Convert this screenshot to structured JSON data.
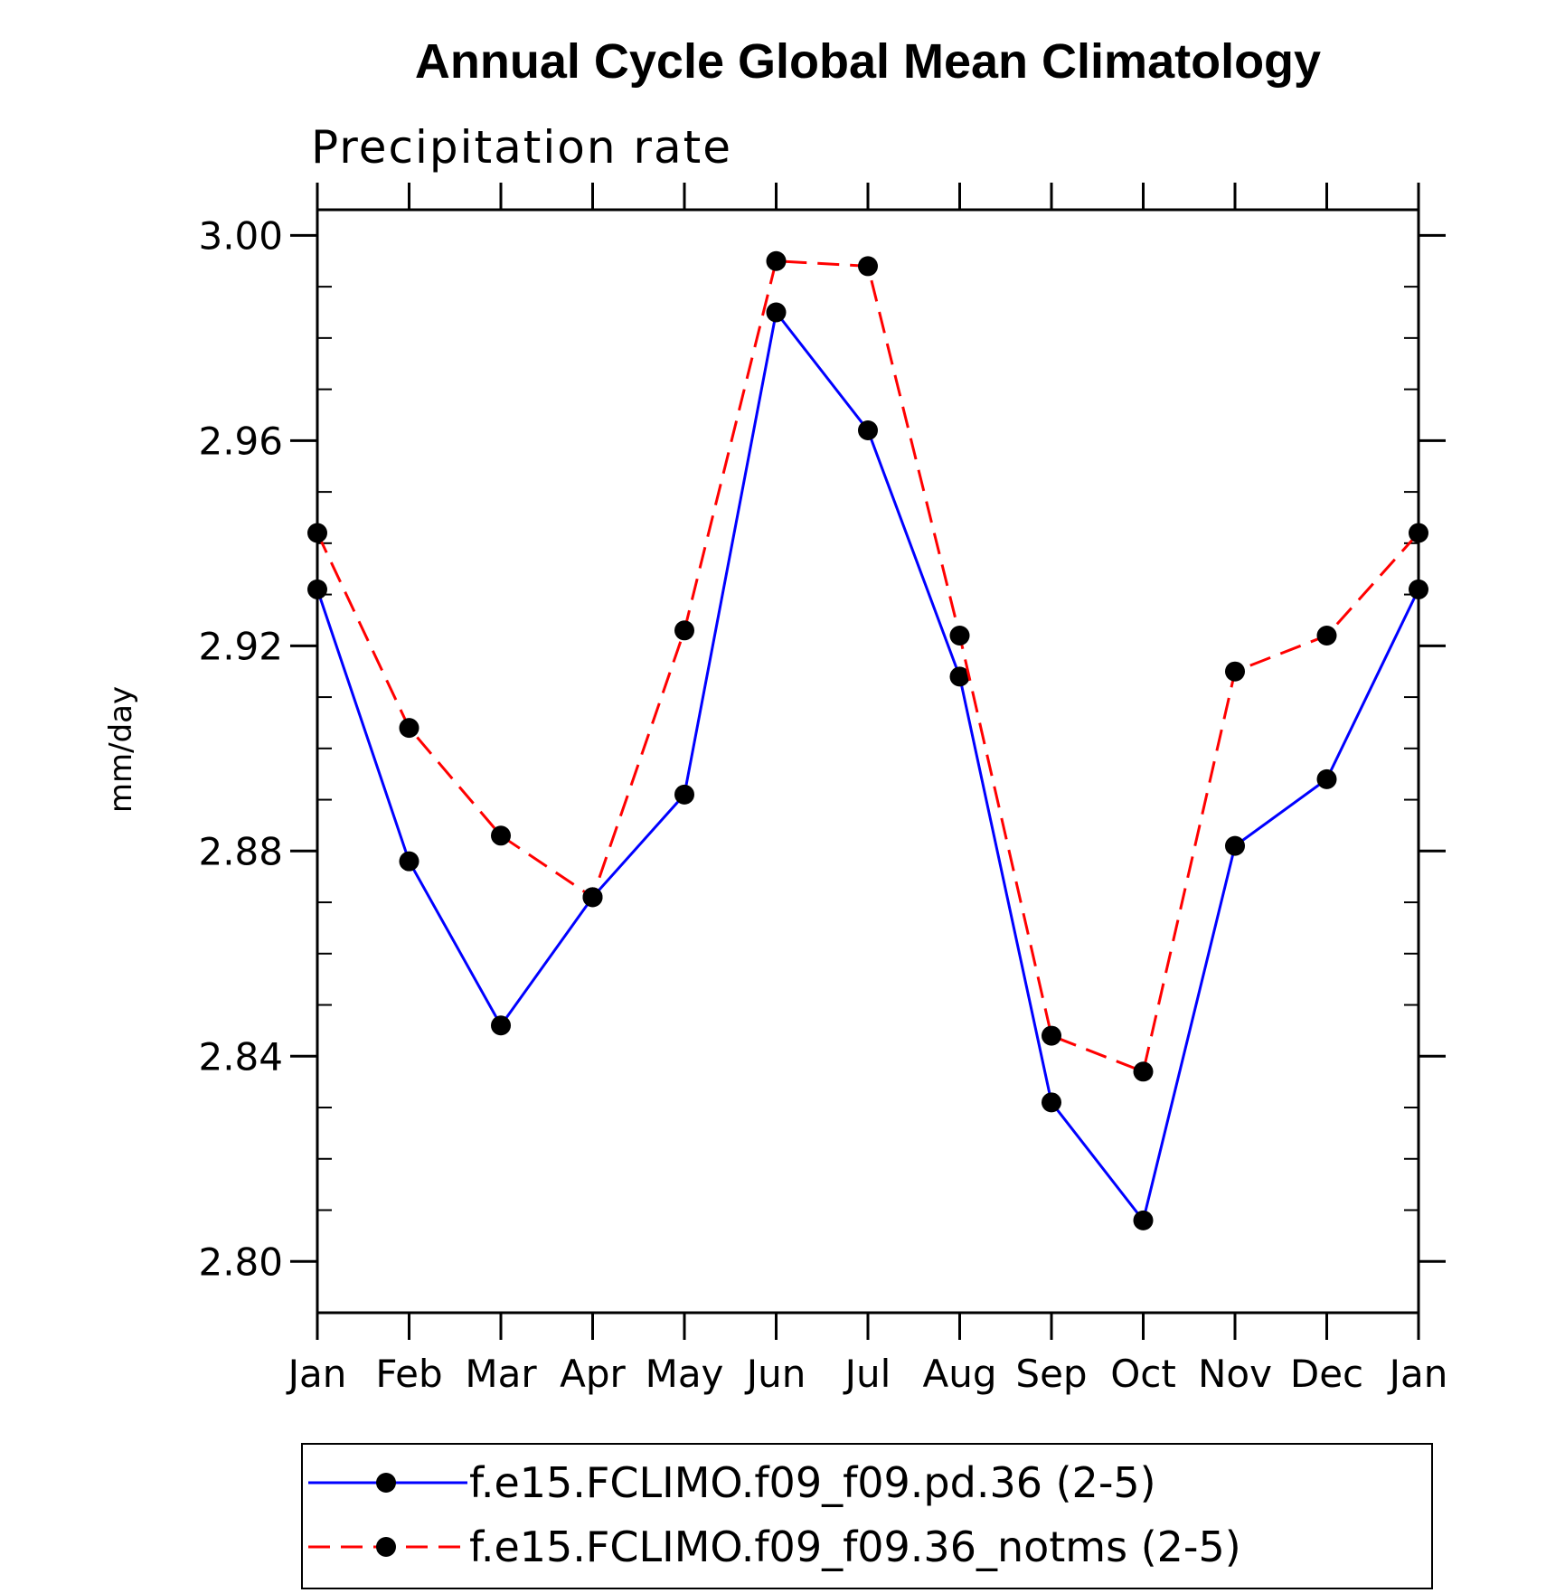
{
  "chart_data": {
    "type": "line",
    "title": "Annual Cycle Global Mean Climatology",
    "subtitle": "Precipitation rate",
    "xlabel": "",
    "ylabel": "mm/day",
    "categories": [
      "Jan",
      "Feb",
      "Mar",
      "Apr",
      "May",
      "Jun",
      "Jul",
      "Aug",
      "Sep",
      "Oct",
      "Nov",
      "Dec",
      "Jan"
    ],
    "ylim": [
      2.79,
      3.005
    ],
    "yticks": [
      "2.80",
      "2.84",
      "2.88",
      "2.92",
      "2.96",
      "3.00"
    ],
    "ytick_values": [
      2.8,
      2.84,
      2.88,
      2.92,
      2.96,
      3.0
    ],
    "grid": false,
    "legend_position": "bottom",
    "series": [
      {
        "name": "f.e15.FCLIMO.f09_f09.pd.36 (2-5)",
        "color": "#0000ff",
        "line_style": "solid",
        "marker": "filled-circle",
        "marker_color": "#000000",
        "values": [
          2.931,
          2.878,
          2.846,
          2.871,
          2.891,
          2.985,
          2.962,
          2.914,
          2.831,
          2.808,
          2.881,
          2.894,
          2.931
        ]
      },
      {
        "name": "f.e15.FCLIMO.f09_f09.36_notms (2-5)",
        "color": "#ff0000",
        "line_style": "dashed",
        "marker": "filled-circle",
        "marker_color": "#000000",
        "values": [
          2.942,
          2.904,
          2.883,
          2.871,
          2.923,
          2.995,
          2.994,
          2.922,
          2.844,
          2.837,
          2.915,
          2.922,
          2.942
        ]
      }
    ]
  }
}
